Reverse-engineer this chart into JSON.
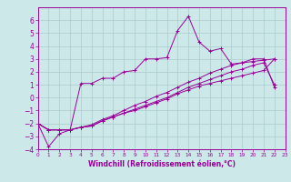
{
  "xlabel": "Windchill (Refroidissement éolien,°C)",
  "xlim": [
    0,
    23
  ],
  "ylim": [
    -4,
    7
  ],
  "xticks": [
    0,
    1,
    2,
    3,
    4,
    5,
    6,
    7,
    8,
    9,
    10,
    11,
    12,
    13,
    14,
    15,
    16,
    17,
    18,
    19,
    20,
    21,
    22,
    23
  ],
  "yticks": [
    -4,
    -3,
    -2,
    -1,
    0,
    1,
    2,
    3,
    4,
    5,
    6
  ],
  "bg_color": "#cce8e8",
  "line_color": "#990099",
  "grid_color": "#aacccc",
  "lines": [
    {
      "x": [
        0,
        1,
        2,
        3,
        4,
        5,
        6,
        7,
        8,
        9,
        10,
        11,
        12,
        13,
        14,
        15,
        16,
        17,
        18,
        19,
        20,
        21,
        22
      ],
      "y": [
        -2,
        -3.8,
        -2.8,
        -2.5,
        1.1,
        1.1,
        1.5,
        1.5,
        2.0,
        2.1,
        3.0,
        3.0,
        3.1,
        5.2,
        6.3,
        4.3,
        3.6,
        3.8,
        2.6,
        2.7,
        3.0,
        3.0,
        0.8
      ]
    },
    {
      "x": [
        0,
        1,
        2,
        3,
        4,
        5,
        6,
        7,
        8,
        9,
        10,
        11,
        12,
        13,
        14,
        15,
        16,
        17,
        18,
        19,
        20,
        21,
        22
      ],
      "y": [
        -2,
        -2.5,
        -2.5,
        -2.5,
        -2.3,
        -2.2,
        -1.8,
        -1.5,
        -1.2,
        -1.0,
        -0.7,
        -0.4,
        -0.1,
        0.3,
        0.6,
        0.9,
        1.1,
        1.3,
        1.5,
        1.7,
        1.9,
        2.1,
        3.0
      ]
    },
    {
      "x": [
        0,
        1,
        2,
        3,
        4,
        5,
        6,
        7,
        8,
        9,
        10,
        11,
        12,
        13,
        14,
        15,
        16,
        17,
        18,
        19,
        20,
        21,
        22
      ],
      "y": [
        -2,
        -2.5,
        -2.5,
        -2.5,
        -2.3,
        -2.2,
        -1.8,
        -1.5,
        -1.2,
        -0.9,
        -0.6,
        -0.3,
        0.0,
        0.4,
        0.8,
        1.1,
        1.4,
        1.7,
        2.0,
        2.2,
        2.5,
        2.7,
        1.0
      ]
    },
    {
      "x": [
        0,
        1,
        2,
        3,
        4,
        5,
        6,
        7,
        8,
        9,
        10,
        11,
        12,
        13,
        14,
        15,
        16,
        17,
        18,
        19,
        20,
        21,
        22
      ],
      "y": [
        -2,
        -2.5,
        -2.5,
        -2.5,
        -2.3,
        -2.1,
        -1.7,
        -1.4,
        -1.0,
        -0.6,
        -0.3,
        0.1,
        0.4,
        0.8,
        1.2,
        1.5,
        1.9,
        2.2,
        2.5,
        2.7,
        2.8,
        2.9,
        3.0
      ]
    }
  ]
}
